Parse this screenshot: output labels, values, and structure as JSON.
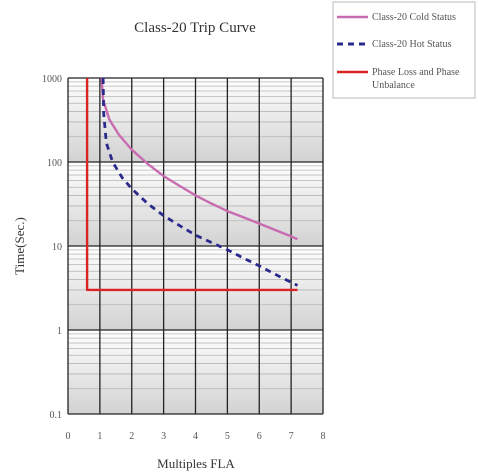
{
  "chart_data": {
    "type": "line",
    "title": "Class-20 Trip Curve",
    "xlabel": "Multiples FLA",
    "ylabel": "Time(Sec.)",
    "xlim": [
      0,
      8
    ],
    "ylim": [
      0.1,
      1000
    ],
    "y_scale": "log",
    "x_ticks": [
      "0",
      "1",
      "2",
      "3",
      "4",
      "5",
      "6",
      "7",
      "8"
    ],
    "y_ticks": [
      "0.1",
      "1",
      "10",
      "100",
      "1000"
    ],
    "grid": true,
    "legend_position": "top-right, outside plot",
    "series": [
      {
        "name": "Class-20 Cold Status",
        "color": "#c86bb0",
        "style": "solid",
        "x": [
          1.05,
          1.1,
          1.3,
          1.6,
          2.0,
          2.5,
          3.0,
          3.5,
          4.0,
          4.5,
          5.0,
          5.5,
          6.0,
          6.5,
          7.0,
          7.2
        ],
        "y": [
          1000,
          550,
          320,
          210,
          140,
          95,
          68,
          52,
          40,
          32,
          26,
          22,
          18.5,
          15.5,
          13,
          12
        ]
      },
      {
        "name": "Class-20 Hot Status",
        "color": "#2a2a8c",
        "style": "dashed",
        "x": [
          1.1,
          1.12,
          1.2,
          1.4,
          1.7,
          2.0,
          2.5,
          3.0,
          3.5,
          4.0,
          4.5,
          5.0,
          5.5,
          6.0,
          6.5,
          7.0,
          7.2
        ],
        "y": [
          1000,
          380,
          170,
          100,
          65,
          48,
          32,
          23,
          17.5,
          13.5,
          11,
          9,
          7.2,
          5.8,
          4.6,
          3.7,
          3.4
        ]
      },
      {
        "name": "Phase Loss and Phase Unbalance",
        "color": "#dd2222",
        "style": "solid",
        "x": [
          0.6,
          0.6,
          7.2
        ],
        "y": [
          1000,
          3,
          3
        ]
      }
    ]
  }
}
